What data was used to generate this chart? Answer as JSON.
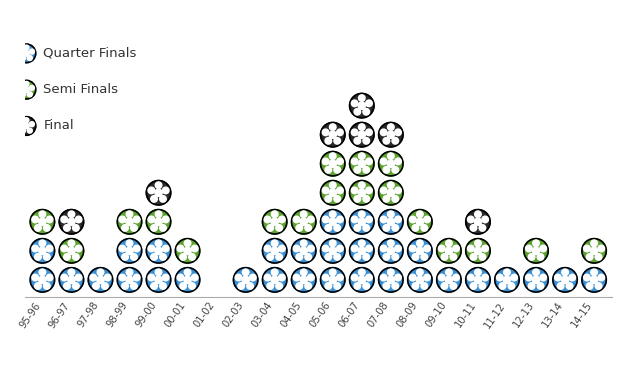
{
  "seasons": [
    "95-96",
    "96-97",
    "97-98",
    "98-99",
    "99-00",
    "00-01",
    "01-02",
    "02-03",
    "03-04",
    "04-05",
    "05-06",
    "06-07",
    "07-08",
    "08-09",
    "09-10",
    "10-11",
    "11-12",
    "12-13",
    "13-14",
    "14-15"
  ],
  "quarter_finals": [
    2,
    1,
    1,
    2,
    2,
    1,
    0,
    1,
    2,
    2,
    3,
    3,
    3,
    2,
    1,
    1,
    1,
    1,
    1,
    1
  ],
  "semi_finals": [
    1,
    1,
    0,
    1,
    1,
    1,
    0,
    0,
    1,
    1,
    2,
    2,
    2,
    1,
    1,
    1,
    0,
    1,
    0,
    1
  ],
  "finals": [
    0,
    1,
    0,
    0,
    1,
    0,
    0,
    0,
    0,
    0,
    1,
    2,
    1,
    0,
    0,
    1,
    0,
    0,
    0,
    0
  ],
  "blue": "#3a90d4",
  "green": "#5ba32e",
  "black": "#2a2a2a",
  "bg": "#ffffff",
  "legend_labels": [
    "Quarter Finals",
    "Semi Finals",
    "Final"
  ]
}
